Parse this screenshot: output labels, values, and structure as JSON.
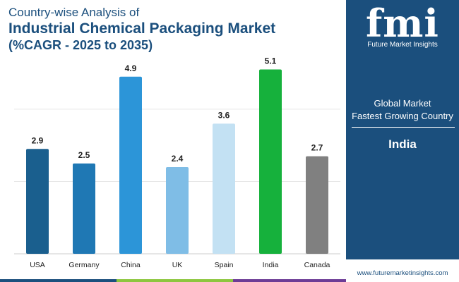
{
  "header": {
    "subtitle": "Country-wise Analysis of",
    "title": "Industrial Chemical Packaging Market",
    "cagr_label": "(%CAGR - 2025 to 2035)"
  },
  "chart_data": {
    "type": "bar",
    "categories": [
      "USA",
      "Germany",
      "China",
      "UK",
      "Spain",
      "India",
      "Canada"
    ],
    "values": [
      2.9,
      2.5,
      4.9,
      2.4,
      3.6,
      5.1,
      2.7
    ],
    "value_labels": [
      "2.9",
      "2.5",
      "4.9",
      "2.4",
      "3.6",
      "5.1",
      "2.7"
    ],
    "colors": [
      "#1a5f8e",
      "#1f78b4",
      "#2c95d8",
      "#7fbde6",
      "#c3e1f3",
      "#16b13c",
      "#808080"
    ],
    "ylim": [
      0,
      5.5
    ],
    "title": "",
    "xlabel": "",
    "ylabel": "",
    "grid": true
  },
  "side_panel": {
    "logo_text": "fmi",
    "logo_sub": "Future Market Insights",
    "heading_line1": "Global Market",
    "heading_line2": "Fastest Growing Country",
    "country": "India",
    "url": "www.futuremarketinsights.com"
  },
  "colors": {
    "brand_blue": "#1b4f7d",
    "bar_green": "#8dc63f",
    "bar_purple": "#6d3c96"
  }
}
